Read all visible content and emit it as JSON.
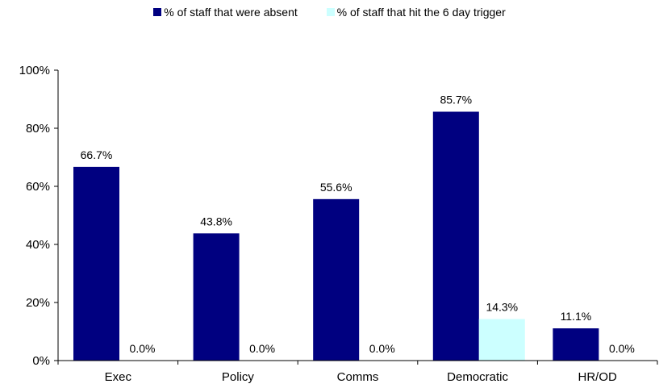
{
  "chart_data": {
    "type": "bar",
    "categories": [
      "Exec",
      "Policy",
      "Comms",
      "Democratic",
      "HR/OD"
    ],
    "series": [
      {
        "name": "% of staff that were absent",
        "color": "#000080",
        "values": [
          66.7,
          43.8,
          55.6,
          85.7,
          11.1
        ],
        "labels": [
          "66.7%",
          "43.8%",
          "55.6%",
          "85.7%",
          "11.1%"
        ]
      },
      {
        "name": "% of staff that hit the 6 day trigger",
        "color": "#ccffff",
        "values": [
          0.0,
          0.0,
          0.0,
          14.3,
          0.0
        ],
        "labels": [
          "0.0%",
          "0.0%",
          "0.0%",
          "14.3%",
          "0.0%"
        ]
      }
    ],
    "ylim": [
      0,
      100
    ],
    "yticks": [
      0,
      20,
      40,
      60,
      80,
      100
    ],
    "ytick_labels": [
      "0%",
      "20%",
      "40%",
      "60%",
      "80%",
      "100%"
    ],
    "grid": false,
    "legend_position": "top-center"
  }
}
